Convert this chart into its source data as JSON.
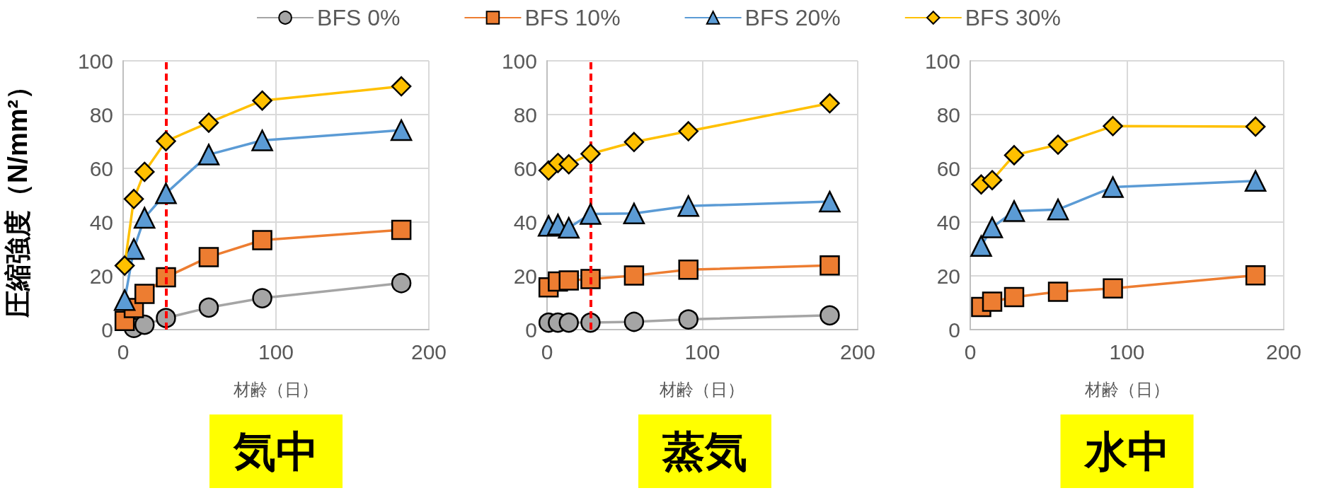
{
  "chart_data": [
    {
      "type": "line",
      "ylabel": "圧縮強度（N/mm²）",
      "xlabel": "材齢（日）",
      "annotations": [
        "気中"
      ],
      "legend": "top",
      "grid": true,
      "xlim": [
        0,
        200
      ],
      "xticks": [
        0,
        100,
        200
      ],
      "ylim": [
        0,
        100
      ],
      "yticks": [
        0,
        20,
        40,
        60,
        80,
        100
      ],
      "ref_lines": [
        {
          "axis": "x",
          "value": 28,
          "color": "#ff0000",
          "line_style": "dashed"
        }
      ],
      "series": [
        {
          "name": "BFS 0%",
          "color": "#a5a5a5",
          "marker": "circle",
          "x": [
            7,
            14,
            28,
            56,
            91,
            182
          ],
          "values": [
            0.6,
            1.8,
            4.3,
            8.2,
            11.7,
            17.3
          ]
        },
        {
          "name": "BFS 10%",
          "color": "#ed7d31",
          "marker": "square",
          "x": [
            1,
            7,
            14,
            28,
            56,
            91,
            182
          ],
          "values": [
            3.2,
            8,
            13.3,
            19.5,
            27,
            33.3,
            37.1
          ]
        },
        {
          "name": "BFS 20%",
          "color": "#5b9bd5",
          "marker": "triangle",
          "x": [
            1,
            7,
            14,
            28,
            56,
            91,
            182
          ],
          "values": [
            11,
            30,
            41.6,
            50.7,
            65.1,
            70.4,
            74.2
          ]
        },
        {
          "name": "BFS 30%",
          "color": "#ffc000",
          "marker": "diamond",
          "x": [
            1,
            7,
            14,
            28,
            56,
            91,
            182
          ],
          "values": [
            23.8,
            48.6,
            58.7,
            70.1,
            77,
            85.2,
            90.5
          ]
        }
      ]
    },
    {
      "type": "line",
      "xlabel": "材齢（日）",
      "annotations": [
        "蒸気"
      ],
      "grid": true,
      "xlim": [
        0,
        200
      ],
      "xticks": [
        0,
        100,
        200
      ],
      "ylim": [
        0,
        100
      ],
      "yticks": [
        0,
        20,
        40,
        60,
        80,
        100
      ],
      "ref_lines": [
        {
          "axis": "x",
          "value": 28,
          "color": "#ff0000",
          "line_style": "dashed"
        }
      ],
      "series": [
        {
          "color": "#a5a5a5",
          "marker": "circle",
          "x": [
            1,
            7,
            14,
            28,
            56,
            91,
            182
          ],
          "values": [
            2.6,
            2.6,
            2.6,
            2.6,
            2.9,
            3.8,
            5.3
          ]
        },
        {
          "color": "#ed7d31",
          "marker": "square",
          "x": [
            1,
            7,
            14,
            28,
            56,
            91,
            182
          ],
          "values": [
            15.7,
            17.9,
            18.3,
            18.8,
            20.1,
            22.3,
            23.9
          ]
        },
        {
          "color": "#5b9bd5",
          "marker": "triangle",
          "x": [
            1,
            7,
            14,
            28,
            56,
            91,
            182
          ],
          "values": [
            38.6,
            39.1,
            37.9,
            43,
            43.2,
            46,
            47.6
          ]
        },
        {
          "color": "#ffc000",
          "marker": "diamond",
          "x": [
            1,
            7,
            14,
            28,
            56,
            91,
            182
          ],
          "values": [
            59.2,
            62,
            61.5,
            65.4,
            69.8,
            73.8,
            84.2
          ]
        }
      ]
    },
    {
      "type": "line",
      "xlabel": "材齢（日）",
      "annotations": [
        "水中"
      ],
      "grid": true,
      "xlim": [
        0,
        200
      ],
      "xticks": [
        0,
        100,
        200
      ],
      "ylim": [
        0,
        100
      ],
      "yticks": [
        0,
        20,
        40,
        60,
        80,
        100
      ],
      "series": [
        {
          "color": "#ed7d31",
          "marker": "square",
          "x": [
            7,
            14,
            28,
            56,
            91,
            182
          ],
          "values": [
            8.4,
            10.4,
            12.1,
            14.1,
            15.3,
            20.2
          ]
        },
        {
          "color": "#5b9bd5",
          "marker": "triangle",
          "x": [
            7,
            14,
            28,
            56,
            91,
            182
          ],
          "values": [
            31.1,
            38,
            44.1,
            44.7,
            53,
            55.3
          ]
        },
        {
          "color": "#ffc000",
          "marker": "diamond",
          "x": [
            7,
            14,
            28,
            56,
            91,
            182
          ],
          "values": [
            54,
            55.6,
            64.9,
            68.8,
            75.7,
            75.5
          ]
        }
      ]
    }
  ]
}
